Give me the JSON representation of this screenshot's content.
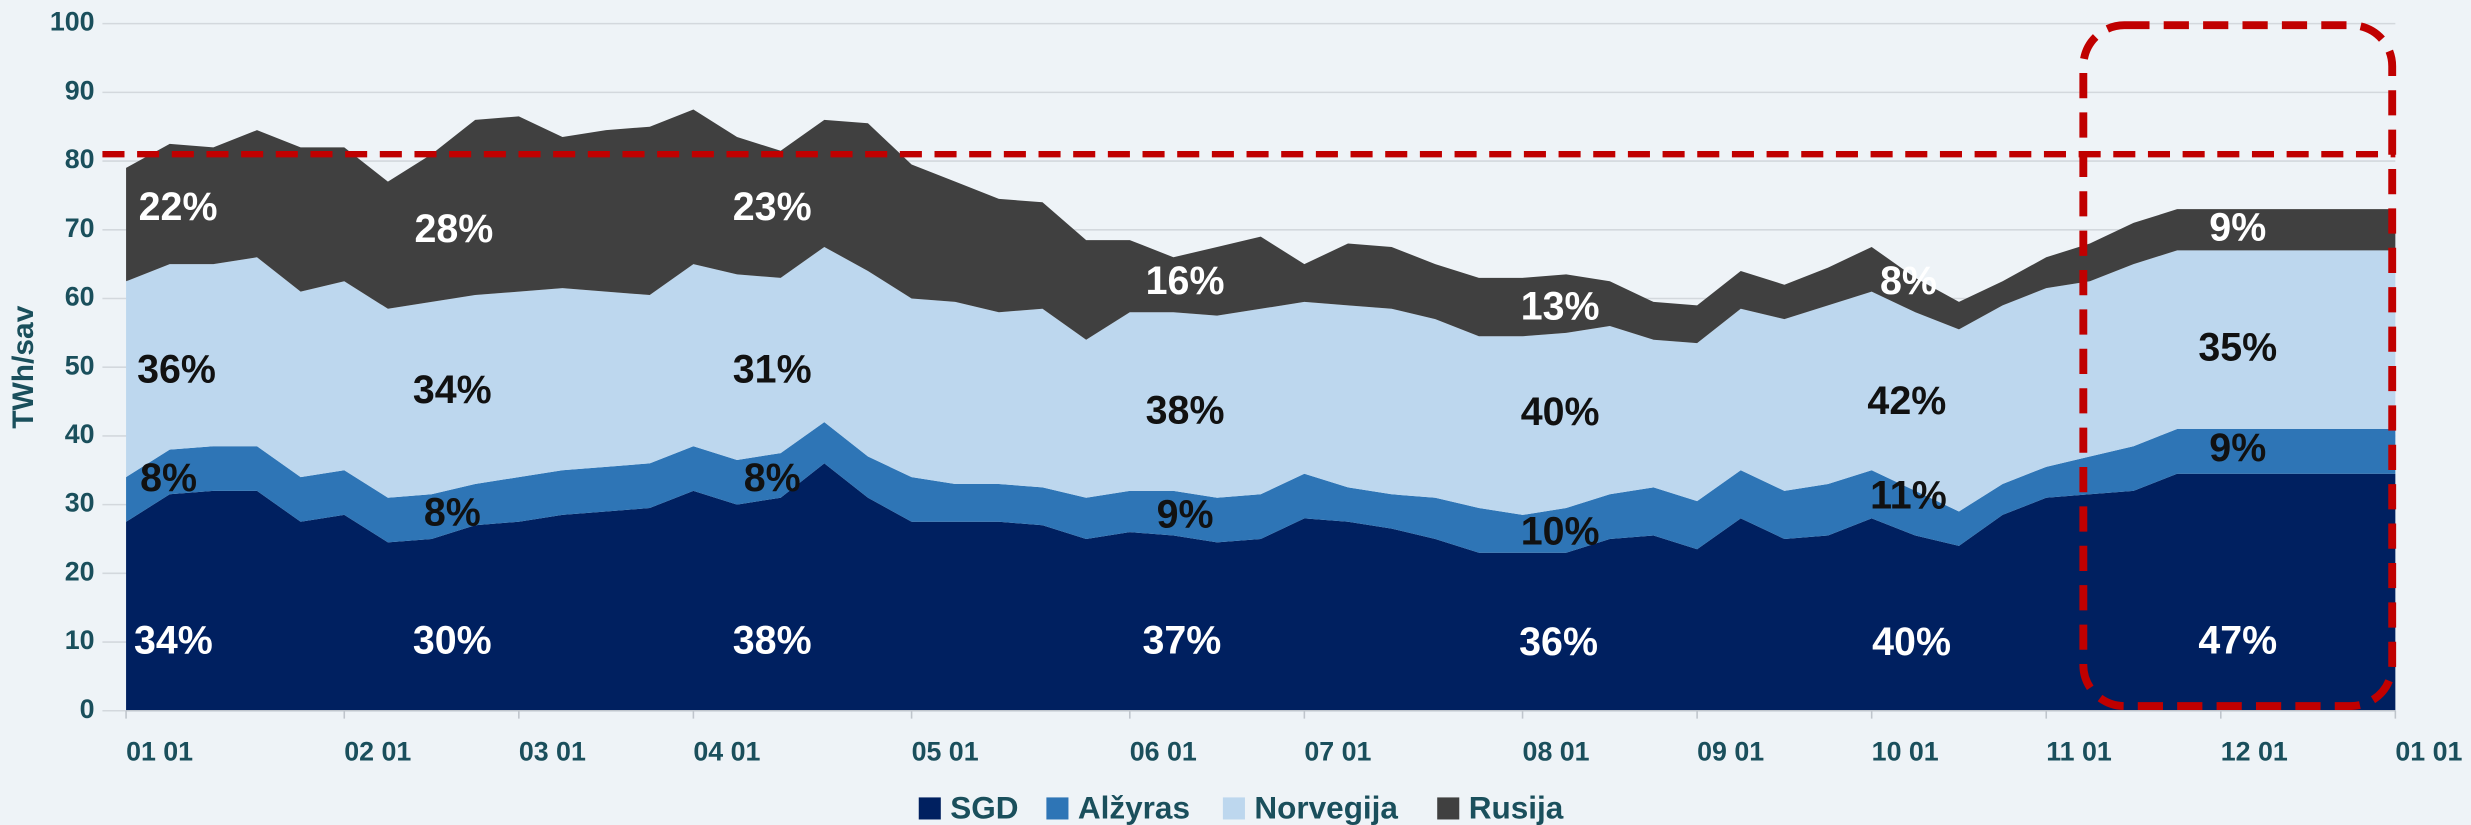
{
  "chart_data": {
    "type": "stacked-area",
    "y_label": "TWh/sav",
    "categories": [
      "01 01",
      null,
      null,
      null,
      null,
      "02 01",
      null,
      null,
      null,
      "03 01",
      null,
      null,
      null,
      "04 01",
      null,
      null,
      null,
      null,
      "05 01",
      null,
      null,
      null,
      null,
      "06 01",
      null,
      null,
      null,
      "07 01",
      null,
      null,
      null,
      null,
      "08 01",
      null,
      null,
      null,
      "09 01",
      null,
      null,
      null,
      "10 01",
      null,
      null,
      null,
      "11 01",
      null,
      null,
      null,
      "12 01",
      null,
      null,
      null,
      "01 01"
    ],
    "series": [
      {
        "name": "SGD",
        "color": "#002060",
        "values": [
          27.5,
          31.5,
          32,
          32,
          27.5,
          28.5,
          24.5,
          25,
          27,
          27.5,
          28.5,
          29,
          29.5,
          32,
          30,
          31,
          36,
          31,
          27.5,
          27.5,
          27.5,
          27,
          25,
          26,
          25.5,
          24.5,
          25,
          28,
          27.5,
          26.5,
          25,
          23,
          23,
          23,
          25,
          25.5,
          23.5,
          28,
          25,
          25.5,
          28,
          25.5,
          24,
          28.5,
          31,
          31.5,
          32,
          34.5,
          34.5,
          34.5,
          34.5,
          34.5,
          34.5
        ]
      },
      {
        "name": "Alžyras",
        "color": "#2e75b6",
        "values": [
          6.5,
          6.5,
          6.5,
          6.5,
          6.5,
          6.5,
          6.5,
          6.5,
          6,
          6.5,
          6.5,
          6.5,
          6.5,
          6.5,
          6.5,
          6.5,
          6,
          6,
          6.5,
          5.5,
          5.5,
          5.5,
          6,
          6,
          6.5,
          6.5,
          6.5,
          6.5,
          5,
          5,
          6,
          6.5,
          5.5,
          6.5,
          6.5,
          7,
          7,
          7,
          7,
          7.5,
          7,
          6.5,
          5,
          4.5,
          4.5,
          5.5,
          6.5,
          6.5,
          6.5,
          6.5,
          6.5,
          6.5,
          6.5
        ]
      },
      {
        "name": "Norvegija",
        "color": "#bdd7ee",
        "values": [
          28.5,
          27,
          26.5,
          27.5,
          27,
          27.5,
          27.5,
          28,
          27.5,
          27,
          26.5,
          25.5,
          24.5,
          26.5,
          27,
          25.5,
          25.5,
          27,
          26,
          26.5,
          25,
          26,
          23,
          26,
          26,
          26.5,
          27,
          25,
          26.5,
          27,
          26,
          25,
          26,
          25.5,
          24.5,
          21.5,
          23,
          23.5,
          25,
          26,
          26,
          26,
          26.5,
          26,
          26,
          25.5,
          26.5,
          26,
          26,
          26,
          26,
          26,
          26
        ]
      },
      {
        "name": "Rusija",
        "color": "#404040",
        "values": [
          16.5,
          17.5,
          17,
          18.5,
          21,
          19.5,
          18.5,
          21.5,
          25.5,
          25.5,
          22,
          23.5,
          24.5,
          22.5,
          20,
          18.5,
          18.5,
          21.5,
          19.5,
          17.5,
          16.5,
          15.5,
          14.5,
          10.5,
          8,
          10,
          10.5,
          5.5,
          9,
          9,
          8,
          8.5,
          8.5,
          8.5,
          6.5,
          5.5,
          5.5,
          5.5,
          5,
          5.5,
          6.5,
          5,
          4,
          3.5,
          4.5,
          5.5,
          6,
          6,
          6,
          6,
          6,
          6,
          6
        ]
      }
    ],
    "ylim": [
      0,
      100
    ],
    "yticks": [
      0,
      10,
      20,
      30,
      40,
      50,
      60,
      70,
      80,
      90,
      100
    ],
    "grid": true,
    "legend": "bottom",
    "reference_lines": [
      {
        "value": 81,
        "color": "#c00000"
      }
    ],
    "annotations": [
      "22%",
      "36%",
      "8%",
      "34%",
      "28%",
      "34%",
      "8%",
      "30%",
      "23%",
      "31%",
      "8%",
      "38%",
      "16%",
      "38%",
      "9%",
      "37%",
      "13%",
      "40%",
      "10%",
      "36%",
      "8%",
      "42%",
      "11%",
      "40%",
      "9%",
      "35%",
      "9%",
      "47%"
    ]
  }
}
